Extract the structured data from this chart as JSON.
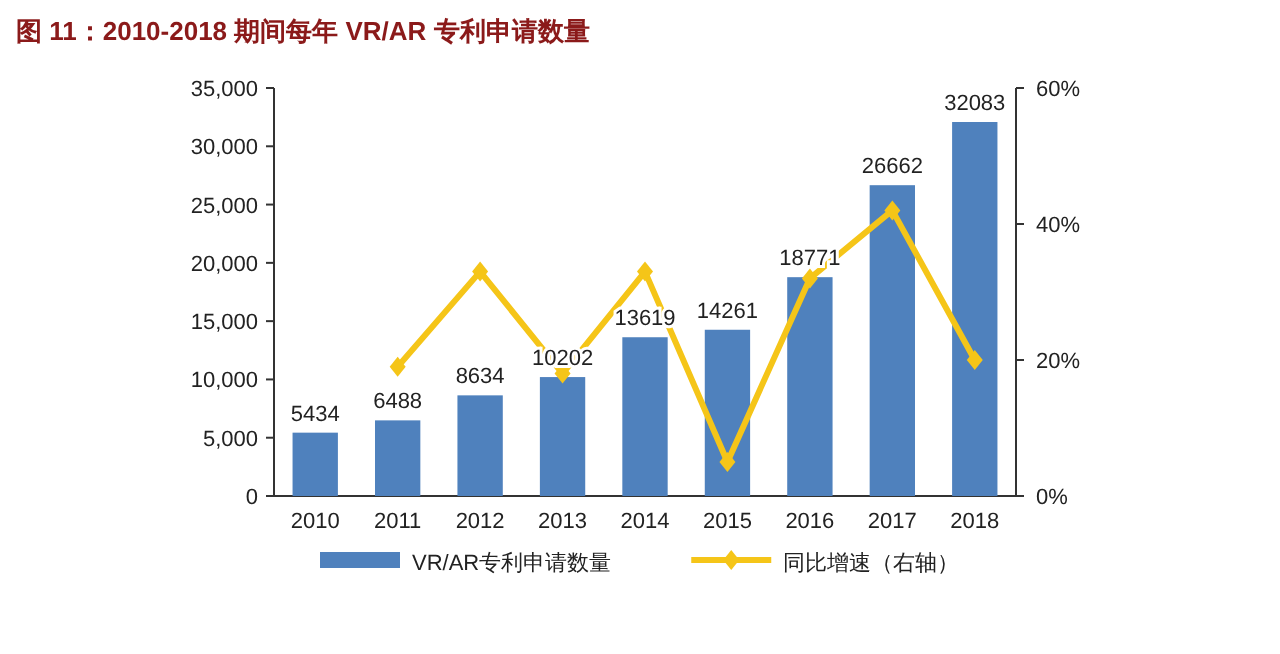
{
  "chart_data": {
    "type": "bar",
    "title": "图 11：2010-2018 期间每年 VR/AR 专利申请数量",
    "categories": [
      "2010",
      "2011",
      "2012",
      "2013",
      "2014",
      "2015",
      "2016",
      "2017",
      "2018"
    ],
    "series": [
      {
        "name": "VR/AR专利申请数量",
        "color": "#4f81bd",
        "values": [
          5434,
          6488,
          8634,
          10202,
          13619,
          14261,
          18771,
          26662,
          32083
        ],
        "value_labels": [
          "5434",
          "6488",
          "8634",
          "10202",
          "13619",
          "14261",
          "18771",
          "26662",
          "32083"
        ]
      },
      {
        "name": "同比增速（右轴）",
        "type": "line",
        "axis": "y2",
        "color": "#f5c518",
        "marker": "diamond",
        "values": [
          null,
          19,
          33,
          18,
          33,
          5,
          32,
          42,
          20
        ]
      }
    ],
    "ylim": [
      0,
      35000
    ],
    "yticks": [
      0,
      {
        "value": 5000,
        "label": "5,000"
      },
      {
        "value": 10000,
        "label": "10,000"
      },
      {
        "value": 15000,
        "label": "15,000"
      },
      {
        "value": 20000,
        "label": "20,000"
      },
      {
        "value": 25000,
        "label": "25,000"
      },
      {
        "value": 30000,
        "label": "30,000"
      },
      {
        "value": 35000,
        "label": "35,000"
      }
    ],
    "y2lim": [
      0,
      60
    ],
    "y2ticks": [
      {
        "value": 0,
        "label": "0%"
      },
      {
        "value": 20,
        "label": "20%"
      },
      {
        "value": 40,
        "label": "40%"
      },
      {
        "value": 60,
        "label": "60%"
      }
    ],
    "grid": false,
    "legend": "bottom"
  }
}
